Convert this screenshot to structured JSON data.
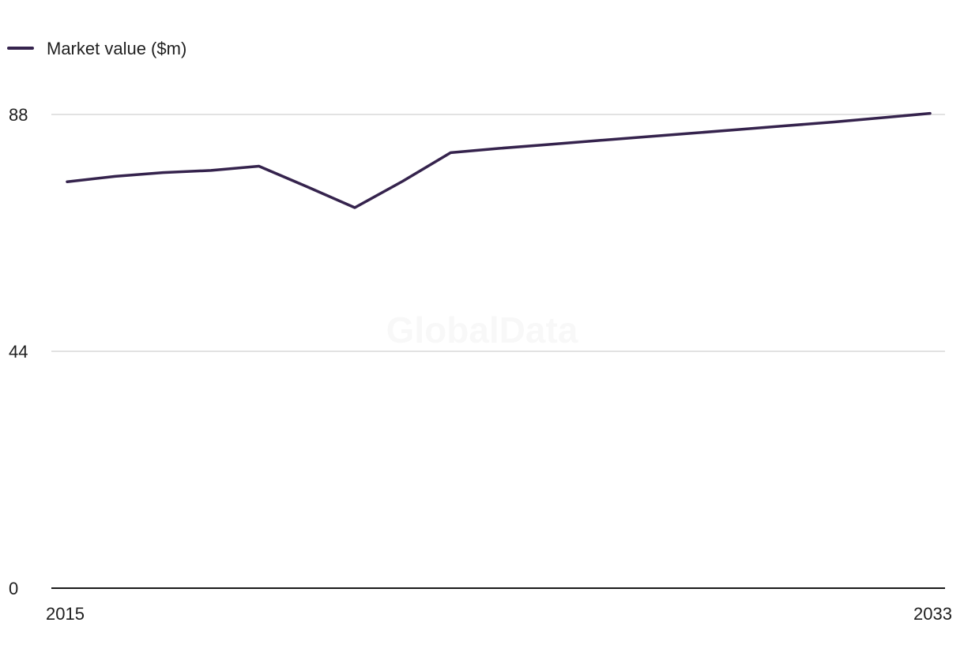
{
  "chart_data": {
    "type": "line",
    "title": "",
    "xlabel": "",
    "ylabel": "",
    "x": [
      2015,
      2016,
      2017,
      2018,
      2019,
      2020,
      2021,
      2022,
      2023,
      2024,
      2025,
      2026,
      2027,
      2028,
      2029,
      2030,
      2031,
      2032,
      2033
    ],
    "series": [
      {
        "name": "Market value ($m)",
        "color": "#35234d",
        "values": [
          75.5,
          76.5,
          77.2,
          77.6,
          78.4,
          74.6,
          70.7,
          75.6,
          80.9,
          81.7,
          82.4,
          83.1,
          83.8,
          84.5,
          85.2,
          85.9,
          86.6,
          87.4,
          88.2
        ]
      }
    ],
    "ylim": [
      0,
      88
    ],
    "yticks": [
      "0",
      "44",
      "88"
    ],
    "xticks": [
      "2015",
      "2033"
    ],
    "grid": true,
    "legend_position": "top-left",
    "watermark": "GlobalData"
  }
}
